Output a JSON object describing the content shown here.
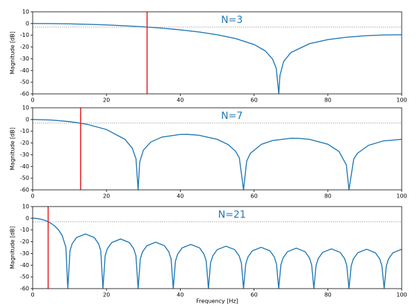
{
  "chart_data": [
    {
      "type": "line",
      "title": "N=3",
      "ylabel": "Magnitude [dB]",
      "color": "#1f77b4",
      "title_color": "#1f77b4",
      "x": [
        0,
        5,
        10,
        15,
        20,
        25,
        30,
        35,
        40,
        45,
        50,
        55,
        60,
        63,
        65,
        66,
        66.7,
        67,
        68,
        70,
        75,
        80,
        85,
        90,
        95,
        100
      ],
      "values": [
        0,
        -0.07,
        -0.29,
        -0.66,
        -1.18,
        -1.89,
        -2.79,
        -3.93,
        -5.36,
        -7.18,
        -9.54,
        -12.8,
        -17.9,
        -23.27,
        -30.26,
        -38.2,
        -60,
        -44.4,
        -32.4,
        -24.66,
        -17.2,
        -13.72,
        -11.68,
        -10.44,
        -9.76,
        -9.54
      ],
      "xlim": [
        0,
        100
      ],
      "ylim": [
        -60,
        10
      ],
      "xticks": [
        0,
        20,
        40,
        60,
        80,
        100
      ],
      "yticks": [
        10,
        0,
        -10,
        -20,
        -30,
        -40,
        -50,
        -60
      ],
      "vline": 31,
      "vline_color": "#e41a1c",
      "hline": -3
    },
    {
      "type": "line",
      "title": "N=7",
      "ylabel": "Magnitude [dB]",
      "color": "#1f77b4",
      "title_color": "#1f77b4",
      "x": [
        0,
        5,
        10,
        13,
        15,
        20,
        25,
        27,
        28,
        28.57,
        29,
        30,
        32,
        35,
        40,
        42,
        45,
        50,
        53,
        55,
        56,
        57.14,
        58,
        59,
        62,
        65,
        70,
        72,
        75,
        80,
        83,
        85,
        85.71,
        87,
        88,
        91,
        95,
        100
      ],
      "values": [
        0,
        -0.43,
        -1.79,
        -3.13,
        -4.29,
        -8.54,
        -16.9,
        -24.48,
        -33.53,
        -60,
        -36.3,
        -26.16,
        -19.24,
        -15.01,
        -12.72,
        -12.69,
        -13.4,
        -16.9,
        -21.41,
        -27.16,
        -32.68,
        -60,
        -35.4,
        -28.82,
        -21.12,
        -17.9,
        -16.01,
        -16.05,
        -16.9,
        -21.08,
        -27.22,
        -38.76,
        -60,
        -33.74,
        -28.83,
        -22.03,
        -18.26,
        -16.9
      ],
      "xlim": [
        0,
        100
      ],
      "ylim": [
        -60,
        10
      ],
      "xticks": [
        0,
        20,
        40,
        60,
        80,
        100
      ],
      "yticks": [
        10,
        0,
        -10,
        -20,
        -30,
        -40,
        -50,
        -60
      ],
      "vline": 13,
      "vline_color": "#e41a1c",
      "hline": -3
    },
    {
      "type": "line",
      "title": "N=21",
      "ylabel": "Magnitude [dB]",
      "xlabel": "Frequency [Hz]",
      "color": "#1f77b4",
      "title_color": "#1f77b4",
      "x": [
        0,
        1,
        2,
        3,
        4,
        5,
        6,
        7,
        8,
        9,
        9.52,
        10.12,
        10.71,
        11.9,
        14.29,
        16.67,
        17.86,
        18.45,
        19.05,
        19.64,
        20.24,
        21.43,
        23.81,
        26.19,
        27.38,
        27.98,
        28.57,
        29.17,
        29.76,
        30.95,
        33.33,
        35.71,
        36.9,
        37.5,
        38.1,
        38.69,
        39.29,
        40.48,
        42.86,
        45.24,
        46.43,
        47.02,
        47.62,
        48.21,
        48.81,
        50,
        52.38,
        54.76,
        55.95,
        56.55,
        57.14,
        57.74,
        58.33,
        59.52,
        61.9,
        64.29,
        65.48,
        66.07,
        66.67,
        67.26,
        67.86,
        69.05,
        71.43,
        73.81,
        75,
        75.6,
        76.19,
        76.79,
        77.38,
        78.57,
        80.95,
        83.33,
        84.52,
        85.12,
        85.71,
        86.31,
        86.9,
        88.1,
        90.48,
        92.86,
        94.05,
        94.64,
        95.24,
        95.83,
        96.43,
        97.62,
        100
      ],
      "values": [
        0,
        -0.16,
        -0.64,
        -1.46,
        -2.68,
        -4.37,
        -6.66,
        -9.87,
        -14.75,
        -24.72,
        -60,
        -27.6,
        -21.7,
        -16.4,
        -13.4,
        -16.4,
        -21.7,
        -27.6,
        -60,
        -31.9,
        -26,
        -20.7,
        -17.7,
        -20.7,
        -26,
        -31.9,
        -60,
        -34.6,
        -28.7,
        -23.4,
        -20.4,
        -23.4,
        -28.7,
        -34.6,
        -60,
        -36.5,
        -30.6,
        -25.3,
        -22.3,
        -25.3,
        -30.6,
        -36.5,
        -60,
        -38,
        -32.1,
        -26.8,
        -23.8,
        -26.8,
        -32.1,
        -38,
        -60,
        -39,
        -33.1,
        -27.8,
        -24.8,
        -27.8,
        -33.1,
        -39,
        -60,
        -39.7,
        -33.8,
        -28.5,
        -25.5,
        -28.5,
        -33.8,
        -39.7,
        -60,
        -40.3,
        -34.4,
        -29.1,
        -26.1,
        -29.1,
        -34.4,
        -40.3,
        -60,
        -40.6,
        -34.7,
        -29.4,
        -26.4,
        -29.4,
        -34.7,
        -40.6,
        -60,
        -40.6,
        -34.7,
        -29.4,
        -26.4
      ],
      "xlim": [
        0,
        100
      ],
      "ylim": [
        -60,
        10
      ],
      "xticks": [
        0,
        20,
        40,
        60,
        80,
        100
      ],
      "yticks": [
        10,
        0,
        -10,
        -20,
        -30,
        -40,
        -50,
        -60
      ],
      "vline": 4.2,
      "vline_color": "#e41a1c",
      "hline": -3
    }
  ]
}
